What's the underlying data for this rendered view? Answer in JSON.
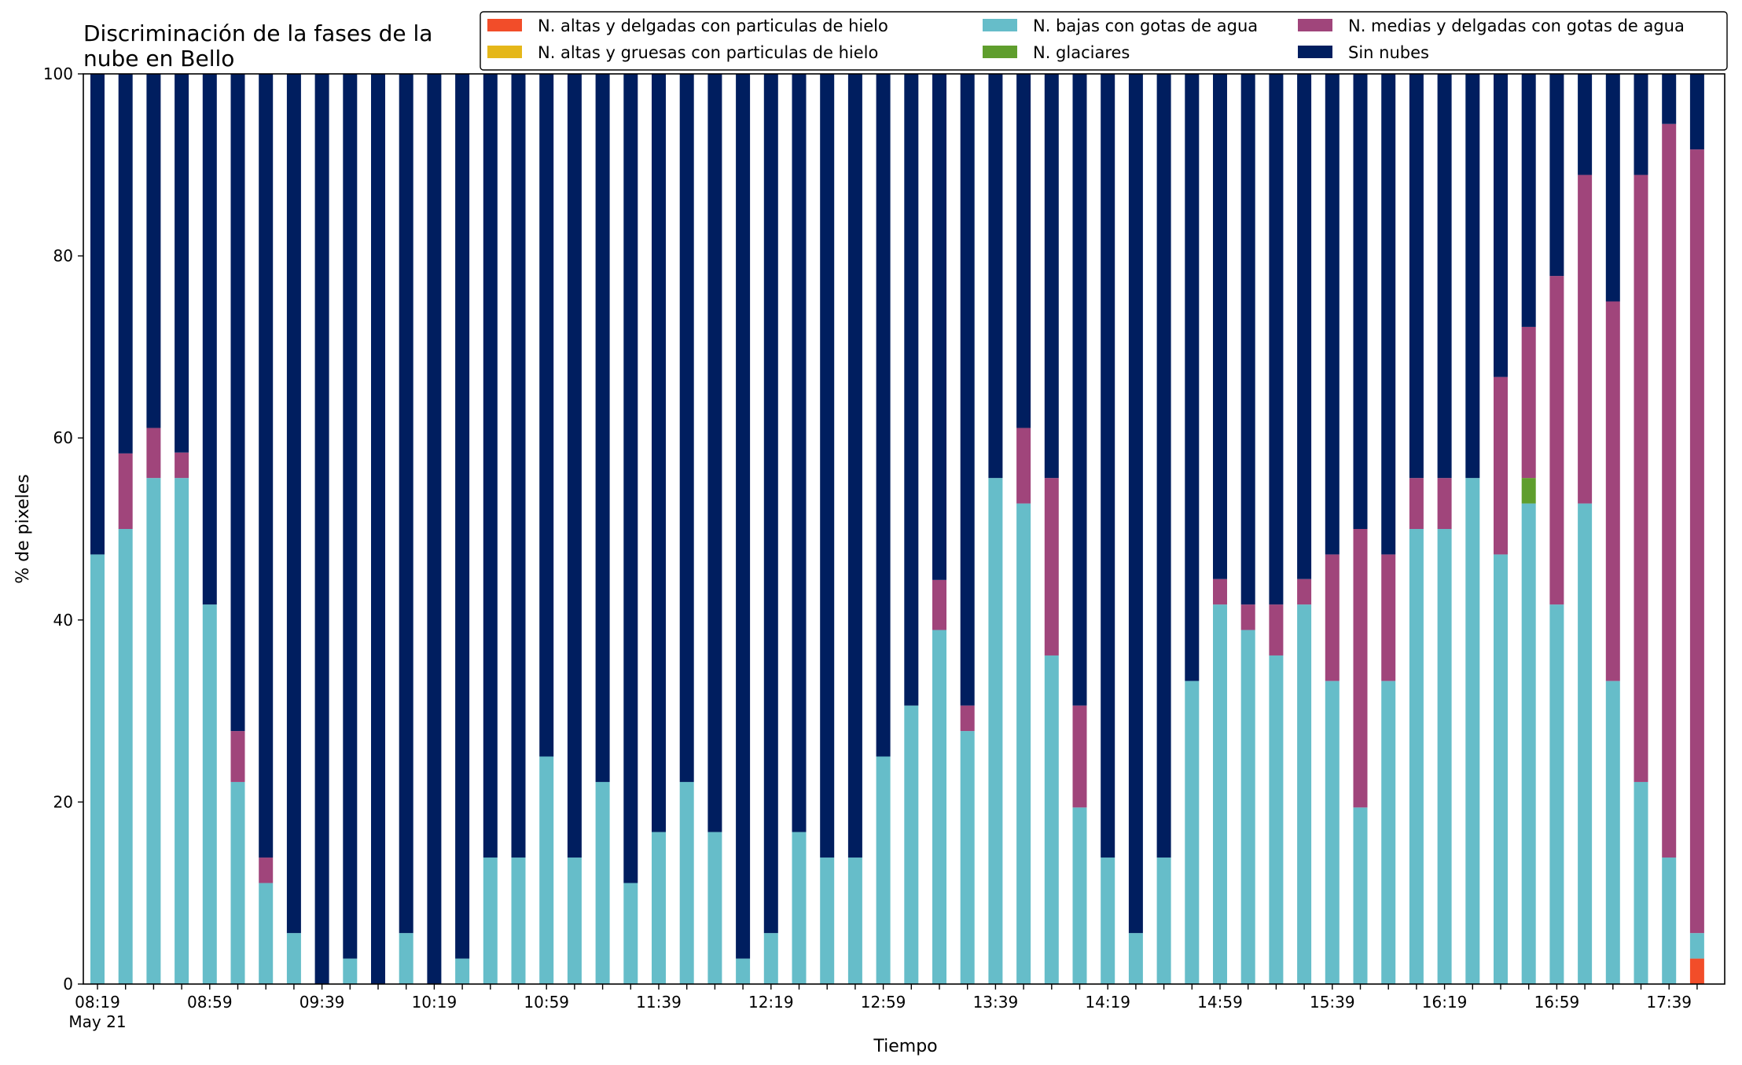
{
  "chart_data": {
    "type": "bar",
    "stacked": true,
    "title": "Discriminación de la fases de la\nnube en Bello",
    "xlabel": "Tiempo",
    "ylabel": "% de pixeles",
    "ylim": [
      0,
      100
    ],
    "yticks": [
      0,
      20,
      40,
      60,
      80,
      100
    ],
    "grid": false,
    "legend_position": "top-right",
    "legend_columns": 3,
    "x_tick_labels": [
      "08:19",
      "08:59",
      "09:39",
      "10:19",
      "10:59",
      "11:39",
      "12:19",
      "12:59",
      "13:39",
      "14:19",
      "14:59",
      "15:39",
      "16:19",
      "16:59",
      "17:39"
    ],
    "x_tick_every": 4,
    "x_date_label": "May 21",
    "categories": [
      "08:19",
      "08:29",
      "08:39",
      "08:49",
      "08:59",
      "09:09",
      "09:19",
      "09:29",
      "09:39",
      "09:49",
      "09:59",
      "10:09",
      "10:19",
      "10:29",
      "10:39",
      "10:49",
      "10:59",
      "11:09",
      "11:19",
      "11:29",
      "11:39",
      "11:49",
      "11:59",
      "12:09",
      "12:19",
      "12:29",
      "12:39",
      "12:49",
      "12:59",
      "13:09",
      "13:19",
      "13:29",
      "13:39",
      "13:49",
      "13:59",
      "14:09",
      "14:19",
      "14:29",
      "14:39",
      "14:49",
      "14:59",
      "15:09",
      "15:19",
      "15:29",
      "15:39",
      "15:49",
      "15:59",
      "16:09",
      "16:19",
      "16:29",
      "16:39",
      "16:49",
      "16:59",
      "17:09",
      "17:19",
      "17:29",
      "17:39",
      "17:49"
    ],
    "series": [
      {
        "name": "N. altas y delgadas con particulas de hielo",
        "color": "#f24d29",
        "values": [
          0,
          0,
          0,
          0,
          0,
          0,
          0,
          0,
          0,
          0,
          0,
          0,
          0,
          0,
          0,
          0,
          0,
          0,
          0,
          0,
          0,
          0,
          0,
          0,
          0,
          0,
          0,
          0,
          0,
          0,
          0,
          0,
          0,
          0,
          0,
          0,
          0,
          0,
          0,
          0,
          0,
          0,
          0,
          0,
          0,
          0,
          0,
          0,
          0,
          0,
          0,
          0,
          0,
          0,
          0,
          0,
          0,
          2.8
        ]
      },
      {
        "name": "N. altas y gruesas con particulas de hielo",
        "color": "#e5b719",
        "values": [
          0,
          0,
          0,
          0,
          0,
          0,
          0,
          0,
          0,
          0,
          0,
          0,
          0,
          0,
          0,
          0,
          0,
          0,
          0,
          0,
          0,
          0,
          0,
          0,
          0,
          0,
          0,
          0,
          0,
          0,
          0,
          0,
          0,
          0,
          0,
          0,
          0,
          0,
          0,
          0,
          0,
          0,
          0,
          0,
          0,
          0,
          0,
          0,
          0,
          0,
          0,
          0,
          0,
          0,
          0,
          0,
          0,
          0
        ]
      },
      {
        "name": "N. bajas con gotas de agua",
        "color": "#66bdc9",
        "values": [
          47.2,
          50,
          55.6,
          55.6,
          41.7,
          22.2,
          11.1,
          5.6,
          0,
          2.8,
          0,
          5.6,
          0,
          2.8,
          13.9,
          13.9,
          25,
          13.9,
          22.2,
          11.1,
          16.7,
          22.2,
          16.7,
          2.8,
          5.6,
          16.7,
          13.9,
          13.9,
          25,
          30.6,
          38.9,
          27.8,
          55.6,
          52.8,
          36.1,
          19.4,
          13.9,
          5.6,
          13.9,
          33.3,
          41.7,
          38.9,
          36.1,
          41.7,
          33.3,
          19.4,
          33.3,
          50,
          50,
          55.6,
          47.2,
          52.8,
          41.7,
          52.8,
          33.3,
          22.2,
          13.9,
          2.8
        ]
      },
      {
        "name": "N. glaciares",
        "color": "#5f9e2d",
        "values": [
          0,
          0,
          0,
          0,
          0,
          0,
          0,
          0,
          0,
          0,
          0,
          0,
          0,
          0,
          0,
          0,
          0,
          0,
          0,
          0,
          0,
          0,
          0,
          0,
          0,
          0,
          0,
          0,
          0,
          0,
          0,
          0,
          0,
          0,
          0,
          0,
          0,
          0,
          0,
          0,
          0,
          0,
          0,
          0,
          0,
          0,
          0,
          0,
          0,
          0,
          0,
          2.8,
          0,
          0,
          0,
          0,
          0,
          0
        ]
      },
      {
        "name": "N. medias y delgadas con gotas de agua",
        "color": "#a0457b",
        "values": [
          0,
          8.3,
          5.5,
          2.8,
          0,
          5.6,
          2.8,
          0,
          0,
          0,
          0,
          0,
          0,
          0,
          0,
          0,
          0,
          0,
          0,
          0,
          0,
          0,
          0,
          0,
          0,
          0,
          0,
          0,
          0,
          0,
          5.5,
          2.8,
          0,
          8.3,
          19.5,
          11.2,
          0,
          0,
          0,
          0,
          2.8,
          2.8,
          5.6,
          2.8,
          13.9,
          30.6,
          13.9,
          5.6,
          5.6,
          0,
          19.5,
          16.6,
          36.1,
          36.1,
          41.7,
          66.7,
          80.6,
          86.1
        ]
      },
      {
        "name": "Sin nubes",
        "color": "#001e5f",
        "values": [
          52.8,
          41.7,
          38.9,
          41.6,
          58.3,
          72.2,
          86.1,
          94.4,
          100,
          97.2,
          100,
          94.4,
          100,
          97.2,
          86.1,
          86.1,
          75,
          86.1,
          77.8,
          88.9,
          83.3,
          77.8,
          83.3,
          97.2,
          94.4,
          83.3,
          86.1,
          86.1,
          75,
          69.4,
          55.6,
          69.4,
          44.4,
          38.9,
          44.4,
          69.4,
          86.1,
          94.4,
          86.1,
          66.7,
          55.5,
          58.3,
          58.3,
          55.5,
          52.8,
          50,
          52.8,
          44.4,
          44.4,
          44.4,
          33.3,
          27.8,
          22.2,
          11.1,
          25,
          11.1,
          5.5,
          8.3
        ]
      }
    ]
  }
}
